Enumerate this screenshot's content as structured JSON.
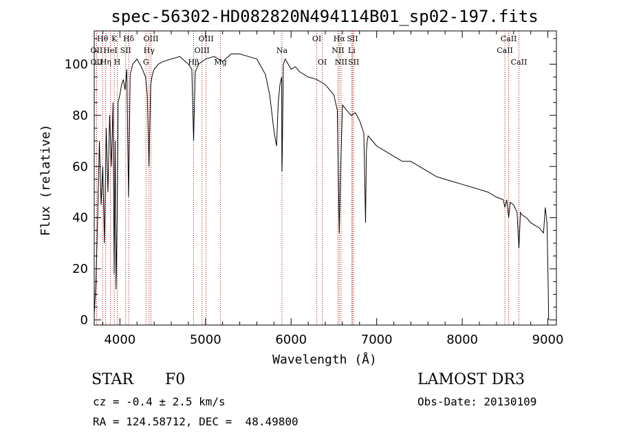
{
  "chart_data": {
    "type": "line",
    "title": "spec-56302-HD082820N494114B01_sp02-197.fits",
    "xlabel": "Wavelength (Å)",
    "ylabel": "Flux (relative)",
    "xlim": [
      3700,
      9100
    ],
    "ylim": [
      -2,
      113
    ],
    "xticks": [
      4000,
      5000,
      6000,
      7000,
      8000,
      9000
    ],
    "yticks": [
      0,
      20,
      40,
      60,
      80,
      100
    ],
    "grid": false,
    "series": [
      {
        "name": "flux",
        "x": [
          3700,
          3720,
          3740,
          3760,
          3780,
          3800,
          3820,
          3840,
          3860,
          3880,
          3900,
          3920,
          3933,
          3945,
          3955,
          3968,
          3980,
          4000,
          4020,
          4040,
          4060,
          4080,
          4101,
          4120,
          4150,
          4200,
          4250,
          4300,
          4320,
          4340,
          4360,
          4380,
          4400,
          4450,
          4500,
          4600,
          4700,
          4800,
          4840,
          4861,
          4880,
          4920,
          5000,
          5100,
          5200,
          5300,
          5400,
          5500,
          5600,
          5700,
          5750,
          5800,
          5830,
          5850,
          5870,
          5890,
          5893,
          5896,
          5910,
          5930,
          5950,
          6000,
          6050,
          6100,
          6150,
          6200,
          6300,
          6400,
          6450,
          6500,
          6540,
          6563,
          6580,
          6600,
          6650,
          6700,
          6750,
          6800,
          6850,
          6870,
          6880,
          6890,
          6900,
          6950,
          7000,
          7100,
          7200,
          7300,
          7400,
          7500,
          7600,
          7700,
          7800,
          7900,
          8000,
          8100,
          8200,
          8300,
          8400,
          8480,
          8498,
          8520,
          8542,
          8560,
          8600,
          8640,
          8662,
          8680,
          8700,
          8750,
          8800,
          8850,
          8900,
          8950,
          8970,
          8990,
          9000,
          9010
        ],
        "y": [
          2,
          15,
          40,
          70,
          45,
          60,
          30,
          75,
          50,
          80,
          60,
          85,
          18,
          70,
          12,
          40,
          85,
          88,
          92,
          94,
          90,
          98,
          48,
          96,
          100,
          102,
          99,
          95,
          88,
          60,
          92,
          96,
          98,
          100,
          101,
          102,
          103,
          100,
          98,
          70,
          97,
          100,
          102,
          103,
          101,
          104,
          104,
          103,
          102,
          96,
          88,
          74,
          68,
          85,
          92,
          95,
          58,
          62,
          100,
          102,
          101,
          98,
          99,
          97,
          96,
          95,
          94,
          92,
          90,
          88,
          82,
          34,
          60,
          84,
          82,
          80,
          81,
          78,
          73,
          38,
          66,
          70,
          72,
          70,
          68,
          66,
          64,
          62,
          62,
          60,
          58,
          56,
          55,
          54,
          53,
          52,
          51,
          50,
          48,
          47,
          44,
          47,
          40,
          46,
          45,
          42,
          28,
          42,
          41,
          40,
          38,
          37,
          36,
          34,
          44,
          38,
          20,
          0
        ]
      }
    ],
    "spectral_lines": [
      {
        "label": "Hθ",
        "wl": 3798,
        "row": 0
      },
      {
        "label": "OII",
        "wl": 3727,
        "row": 1
      },
      {
        "label": "OII",
        "wl": 3727,
        "row": 2
      },
      {
        "label": "Hη",
        "wl": 3835,
        "row": 2
      },
      {
        "label": "HeI",
        "wl": 3889,
        "row": 1
      },
      {
        "label": "K",
        "wl": 3934,
        "row": 0
      },
      {
        "label": "SII",
        "wl": 4068,
        "row": 1
      },
      {
        "label": "H",
        "wl": 3969,
        "row": 2
      },
      {
        "label": "Hδ",
        "wl": 4102,
        "row": 0
      },
      {
        "label": "OIII",
        "wl": 4363,
        "row": 0
      },
      {
        "label": "Hγ",
        "wl": 4341,
        "row": 1
      },
      {
        "label": "G",
        "wl": 4305,
        "row": 2
      },
      {
        "label": "Hβ",
        "wl": 4861,
        "row": 2
      },
      {
        "label": "OIII",
        "wl": 5007,
        "row": 0
      },
      {
        "label": "OIII",
        "wl": 4959,
        "row": 1
      },
      {
        "label": "Mg",
        "wl": 5175,
        "row": 2
      },
      {
        "label": "Na",
        "wl": 5893,
        "row": 1
      },
      {
        "label": "OI",
        "wl": 6300,
        "row": 0
      },
      {
        "label": "OI",
        "wl": 6364,
        "row": 2
      },
      {
        "label": "Hα",
        "wl": 6563,
        "row": 0
      },
      {
        "label": "NII",
        "wl": 6548,
        "row": 1
      },
      {
        "label": "NII",
        "wl": 6584,
        "row": 2
      },
      {
        "label": "SII",
        "wl": 6717,
        "row": 0
      },
      {
        "label": "Li",
        "wl": 6708,
        "row": 1
      },
      {
        "label": "SII",
        "wl": 6731,
        "row": 2
      },
      {
        "label": "CaII",
        "wl": 8542,
        "row": 0
      },
      {
        "label": "CaII",
        "wl": 8498,
        "row": 1
      },
      {
        "label": "CaII",
        "wl": 8662,
        "row": 2
      }
    ],
    "line_color": "#b00000"
  },
  "info": {
    "object_type": "STAR",
    "subclass": "F0",
    "survey": "LAMOST DR3",
    "cz": "cz = -0.4 ± 2.5 km/s",
    "obs_date": "Obs-Date: 20130109",
    "radec": "RA = 124.58712, DEC =  48.49800"
  }
}
